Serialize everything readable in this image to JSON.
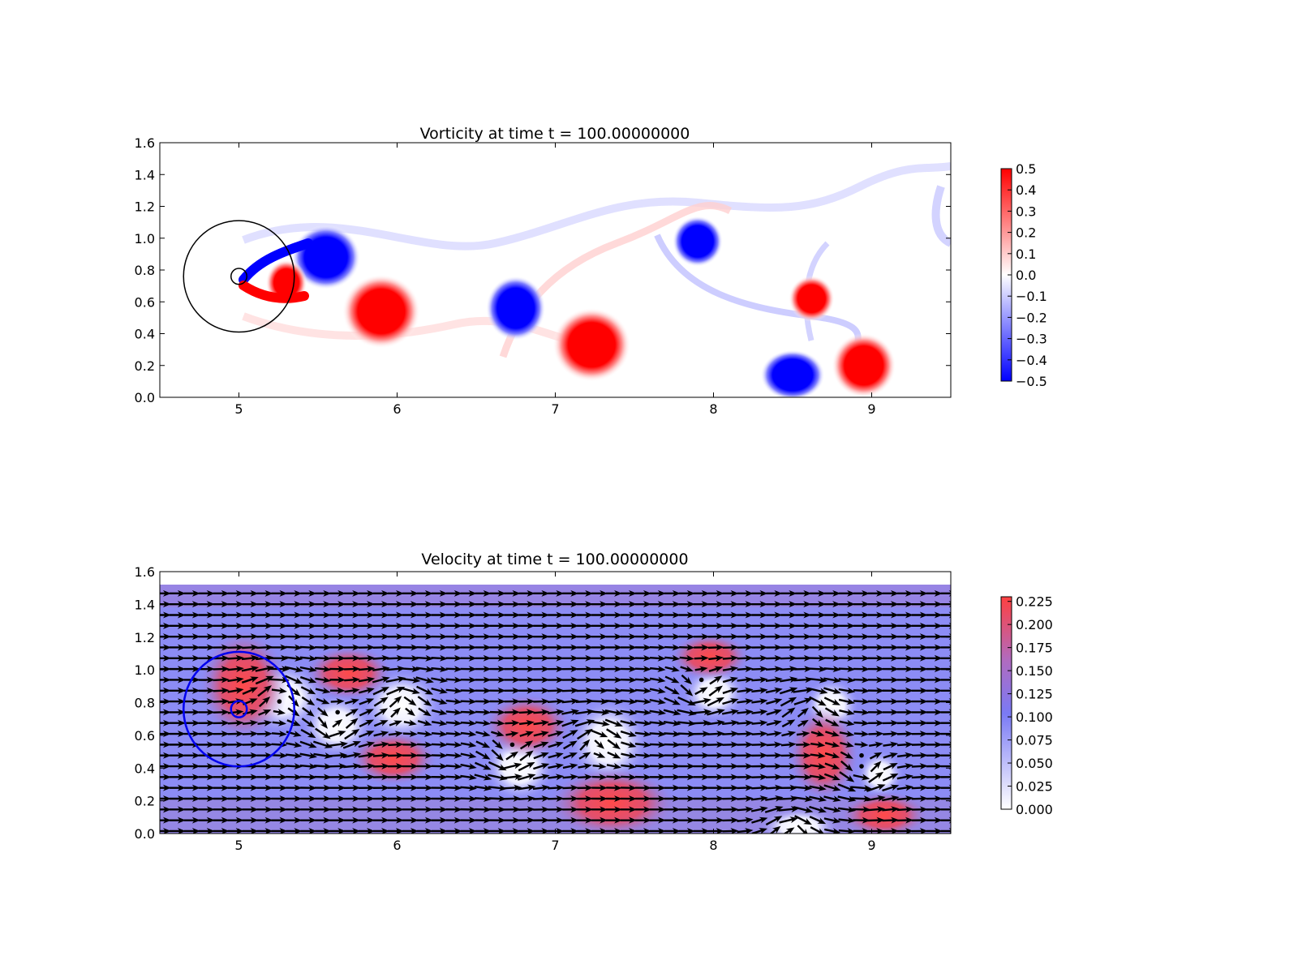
{
  "chart_data": [
    {
      "type": "heatmap",
      "title": "Vorticity at time t =   100.00000000",
      "xlim": [
        4.5,
        9.5
      ],
      "ylim": [
        0.0,
        1.6
      ],
      "xticks": [
        "5",
        "6",
        "7",
        "8",
        "9"
      ],
      "yticks": [
        "0.0",
        "0.2",
        "0.4",
        "0.6",
        "0.8",
        "1.0",
        "1.2",
        "1.4",
        "1.6"
      ],
      "colorbar": {
        "min": -0.5,
        "max": 0.5,
        "ticks": [
          "0.5",
          "0.4",
          "0.3",
          "0.2",
          "0.1",
          "0.0",
          "−0.1",
          "−0.2",
          "−0.3",
          "−0.4",
          "−0.5"
        ],
        "colors": [
          "#0000ff",
          "#ffffff",
          "#ff0000"
        ]
      },
      "circles": [
        {
          "cx": 5.0,
          "cy": 0.76,
          "r": 0.35,
          "color": "#000000"
        },
        {
          "cx": 5.0,
          "cy": 0.76,
          "r": 0.05,
          "color": "#000000"
        }
      ],
      "vortices": [
        {
          "x": 5.55,
          "y": 0.88,
          "strength": -0.5,
          "rx": 0.15,
          "ry": 0.14
        },
        {
          "x": 5.3,
          "y": 0.72,
          "strength": 0.5,
          "rx": 0.09,
          "ry": 0.1
        },
        {
          "x": 5.9,
          "y": 0.54,
          "strength": 0.5,
          "rx": 0.17,
          "ry": 0.16
        },
        {
          "x": 6.75,
          "y": 0.56,
          "strength": -0.5,
          "rx": 0.13,
          "ry": 0.14
        },
        {
          "x": 7.23,
          "y": 0.33,
          "strength": 0.5,
          "rx": 0.17,
          "ry": 0.16
        },
        {
          "x": 7.9,
          "y": 0.98,
          "strength": -0.5,
          "rx": 0.11,
          "ry": 0.11
        },
        {
          "x": 8.62,
          "y": 0.62,
          "strength": 0.5,
          "rx": 0.1,
          "ry": 0.1
        },
        {
          "x": 8.5,
          "y": 0.14,
          "strength": -0.5,
          "rx": 0.14,
          "ry": 0.11
        },
        {
          "x": 8.95,
          "y": 0.2,
          "strength": 0.5,
          "rx": 0.14,
          "ry": 0.14
        }
      ]
    },
    {
      "type": "heatmap",
      "title": "Velocity at time t =   100.00000000",
      "xlim": [
        4.5,
        9.5
      ],
      "ylim": [
        0.0,
        1.6
      ],
      "xticks": [
        "5",
        "6",
        "7",
        "8",
        "9"
      ],
      "yticks": [
        "0.0",
        "0.2",
        "0.4",
        "0.6",
        "0.8",
        "1.0",
        "1.2",
        "1.4",
        "1.6"
      ],
      "domain_ymax": 1.52,
      "colorbar": {
        "min": 0.0,
        "max": 0.23,
        "ticks": [
          "0.225",
          "0.200",
          "0.175",
          "0.150",
          "0.125",
          "0.100",
          "0.075",
          "0.050",
          "0.025",
          "0.000"
        ],
        "colors": [
          "#ffffff",
          "#7a7af5",
          "#ff4040"
        ]
      },
      "circles": [
        {
          "cx": 5.0,
          "cy": 0.76,
          "r": 0.35,
          "color": "#0000ee"
        },
        {
          "cx": 5.0,
          "cy": 0.76,
          "r": 0.05,
          "color": "#0000ee"
        }
      ]
    }
  ]
}
